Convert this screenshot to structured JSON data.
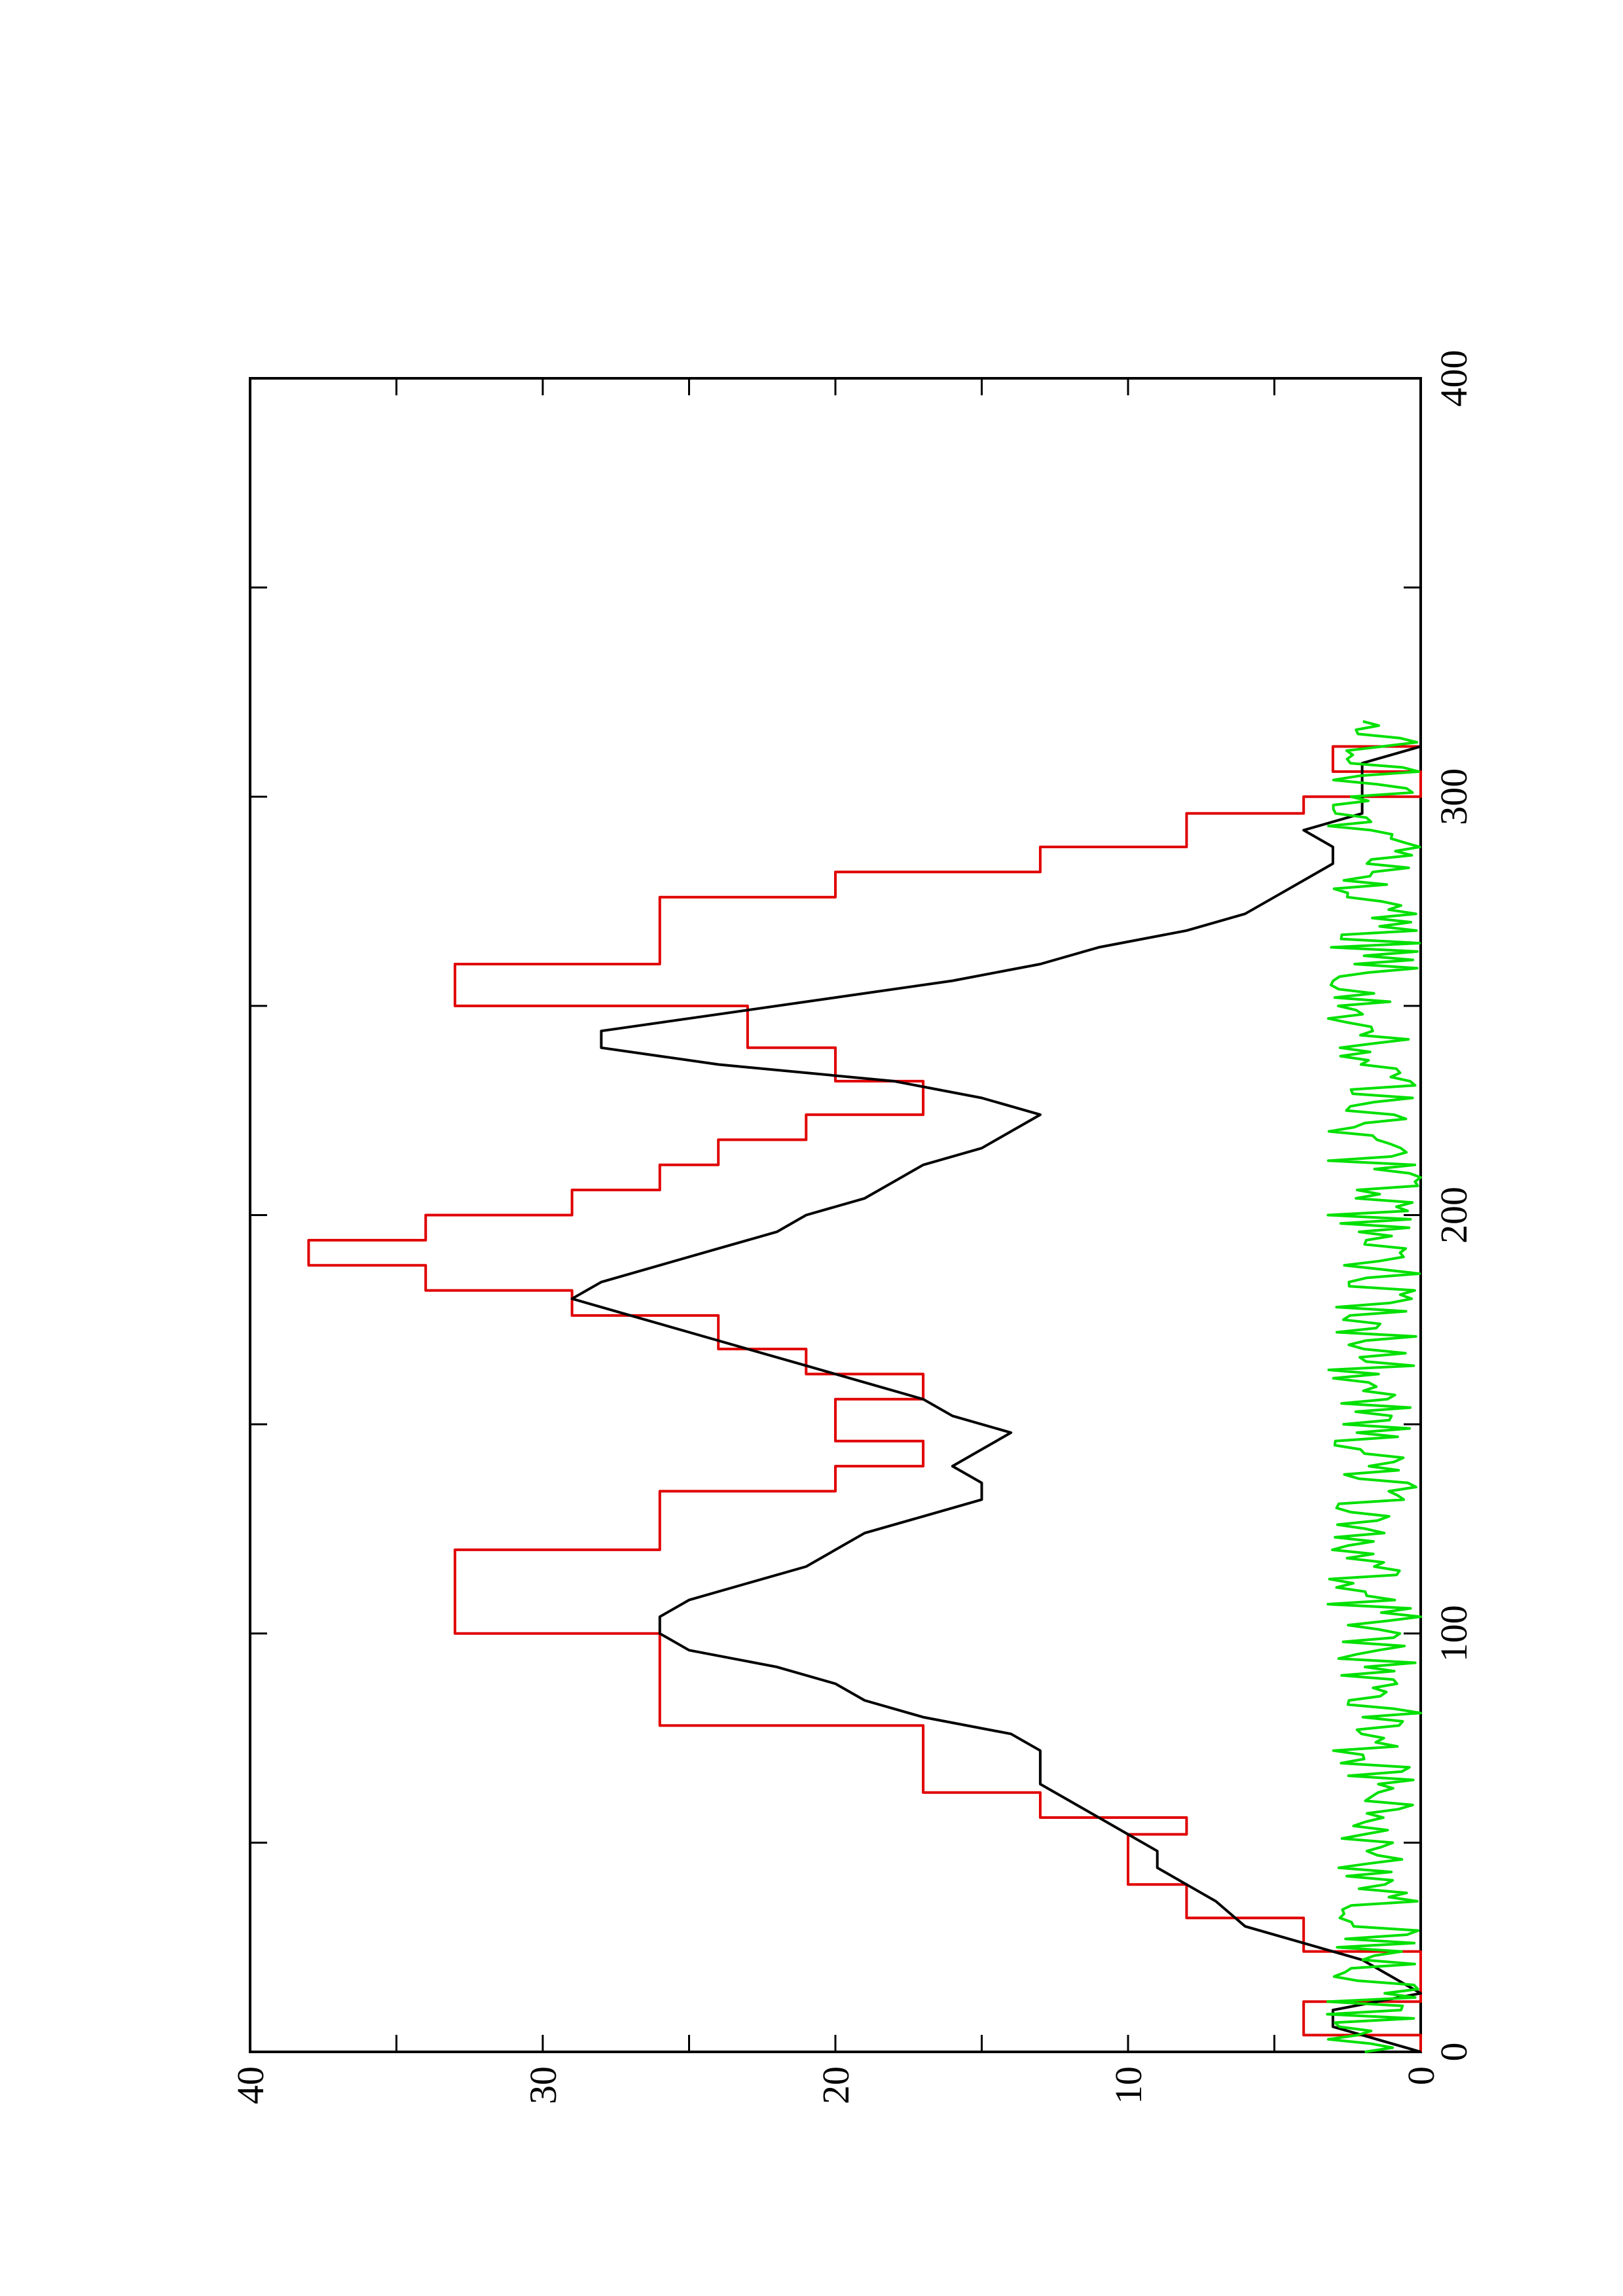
{
  "chart_data": {
    "type": "line",
    "orientation": "rotated 90 degrees counter-clockwise",
    "title": "",
    "xlabel": "",
    "ylabel": "",
    "xlim": [
      0,
      400
    ],
    "ylim": [
      0,
      40
    ],
    "x_ticks": [
      0,
      100,
      200,
      300,
      400
    ],
    "y_ticks": [
      0,
      10,
      20,
      30,
      40
    ],
    "x_tick_labels": [
      "0",
      "100",
      "200",
      "300",
      "400"
    ],
    "y_tick_labels": [
      "0",
      "10",
      "20",
      "30",
      "40"
    ],
    "grid": false,
    "series": [
      {
        "color": "#e00000",
        "step": true,
        "x": [
          0,
          4,
          8,
          12,
          18,
          24,
          32,
          40,
          48,
          52,
          56,
          62,
          68,
          78,
          88,
          100,
          110,
          120,
          128,
          134,
          140,
          146,
          150,
          156,
          162,
          168,
          176,
          182,
          188,
          194,
          200,
          206,
          212,
          218,
          224,
          232,
          240,
          250,
          260,
          270,
          276,
          282,
          288,
          296,
          300,
          306,
          312
        ],
        "values": [
          0,
          4,
          4,
          0,
          0,
          4,
          8,
          10,
          10,
          8,
          13,
          17,
          17,
          26,
          26,
          33,
          33,
          26,
          26,
          20,
          17,
          20,
          20,
          17,
          21,
          24,
          29,
          34,
          38,
          34,
          29,
          26,
          24,
          21,
          17,
          20,
          23,
          33,
          26,
          26,
          20,
          13,
          8,
          4,
          0,
          3,
          0
        ]
      },
      {
        "color": "#000000",
        "step": false,
        "x": [
          0,
          6,
          10,
          14,
          18,
          22,
          26,
          30,
          36,
          40,
          44,
          48,
          52,
          56,
          60,
          64,
          68,
          72,
          76,
          80,
          84,
          88,
          92,
          96,
          100,
          104,
          108,
          112,
          116,
          120,
          124,
          128,
          132,
          136,
          140,
          144,
          148,
          152,
          156,
          160,
          164,
          168,
          172,
          176,
          180,
          184,
          188,
          192,
          196,
          200,
          204,
          208,
          212,
          216,
          220,
          224,
          228,
          232,
          236,
          240,
          244,
          248,
          252,
          256,
          260,
          264,
          268,
          272,
          276,
          280,
          284,
          288,
          292,
          296,
          300,
          304,
          308,
          312,
          316
        ],
        "values": [
          0,
          3,
          3,
          0,
          1,
          2,
          4,
          6,
          7,
          8,
          9,
          9,
          10,
          11,
          12,
          13,
          13,
          13,
          14,
          17,
          19,
          20,
          22,
          25,
          26,
          26,
          25,
          23,
          21,
          20,
          19,
          17,
          15,
          15,
          16,
          15,
          14,
          16,
          17,
          19,
          21,
          23,
          25,
          27,
          29,
          28,
          26,
          24,
          22,
          21,
          19,
          18,
          17,
          15,
          14,
          13,
          15,
          18,
          24,
          28,
          28,
          24,
          20,
          16,
          13,
          11,
          8,
          6,
          5,
          4,
          3,
          3,
          4,
          2,
          2,
          2,
          2,
          0,
          0
        ],
        "smooth": true
      },
      {
        "color": "#00e000",
        "step": false,
        "noise": true,
        "x_range": [
          0,
          318
        ],
        "mean": 1.6,
        "amplitude": 1.6
      }
    ]
  }
}
